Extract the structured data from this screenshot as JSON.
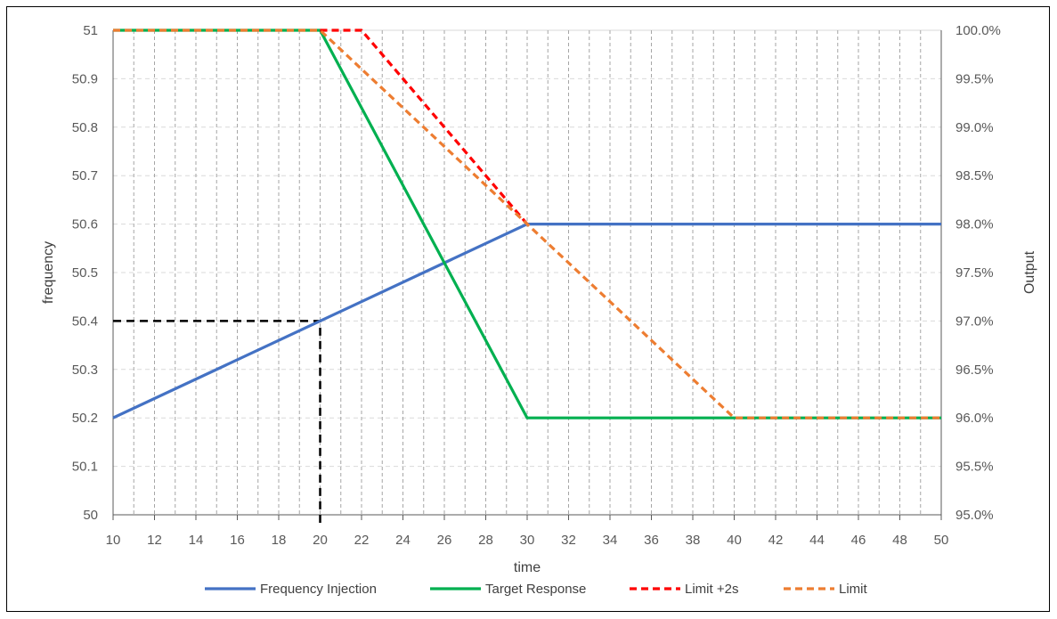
{
  "chart_data": {
    "type": "line",
    "title": "",
    "xlabel": "time",
    "ylabel": "frequency",
    "y2label": "Output",
    "xlim": [
      10,
      50
    ],
    "ylim": [
      50,
      51
    ],
    "y2lim": [
      95.0,
      100.0
    ],
    "x_ticks": [
      10,
      12,
      14,
      16,
      18,
      20,
      22,
      24,
      26,
      28,
      30,
      32,
      34,
      36,
      38,
      40,
      42,
      44,
      46,
      48,
      50
    ],
    "y_ticks": [
      "50",
      "50.1",
      "50.2",
      "50.3",
      "50.4",
      "50.5",
      "50.6",
      "50.7",
      "50.8",
      "50.9",
      "51"
    ],
    "y2_ticks": [
      "95.0%",
      "95.5%",
      "96.0%",
      "96.5%",
      "97.0%",
      "97.5%",
      "98.0%",
      "98.5%",
      "99.0%",
      "99.5%",
      "100.0%"
    ],
    "grid": {
      "vertical": true,
      "horizontal": true
    },
    "legend_position": "bottom",
    "series": [
      {
        "name": "Frequency Injection",
        "axis": "left",
        "color": "#4472C4",
        "dash": "solid",
        "points": [
          [
            10,
            50.2
          ],
          [
            30,
            50.6
          ],
          [
            50,
            50.6
          ]
        ]
      },
      {
        "name": "Target Response",
        "axis": "right",
        "color": "#00B050",
        "dash": "solid",
        "points": [
          [
            10,
            100.0
          ],
          [
            20,
            100.0
          ],
          [
            30,
            96.0
          ],
          [
            50,
            96.0
          ]
        ]
      },
      {
        "name": "Limit +2s",
        "axis": "right",
        "color": "#FF0000",
        "dash": "dashed",
        "points": [
          [
            20,
            100.0
          ],
          [
            22,
            100.0
          ],
          [
            30,
            98.0
          ]
        ]
      },
      {
        "name": "Limit",
        "axis": "right",
        "color": "#ED7D31",
        "dash": "dashed",
        "points": [
          [
            10,
            100.0
          ],
          [
            20,
            100.0
          ],
          [
            40,
            96.0
          ],
          [
            50,
            96.0
          ]
        ]
      }
    ],
    "reference_lines": [
      {
        "color": "#000000",
        "dash": "dashed",
        "axis": "left",
        "points": [
          [
            10,
            50.4
          ],
          [
            20,
            50.4
          ],
          [
            20,
            50.0
          ]
        ]
      }
    ]
  }
}
